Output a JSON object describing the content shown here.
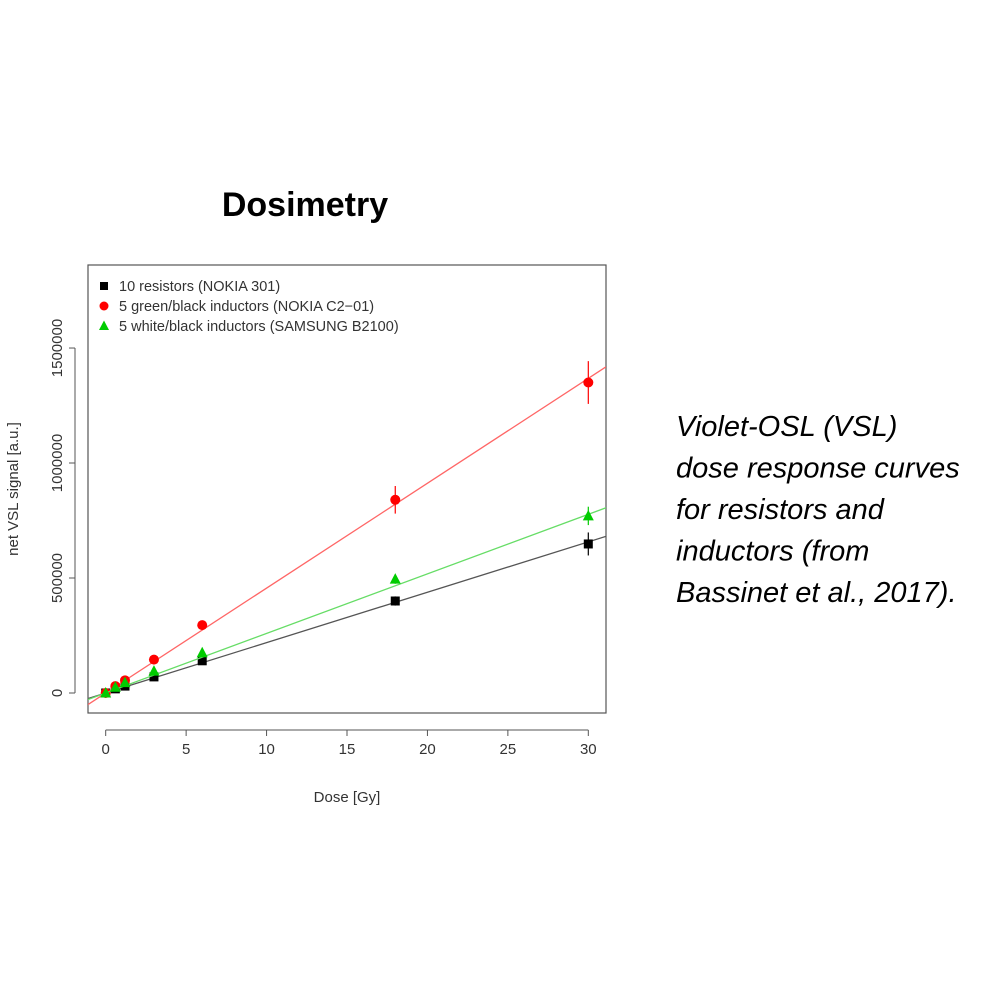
{
  "chart_data": {
    "type": "scatter",
    "title": "Dosimetry",
    "x_label": "Dose [Gy]",
    "y_label": "net VSL signal [a.u.]",
    "x": [
      0,
      0.6,
      1.2,
      3,
      6,
      18,
      30
    ],
    "series": [
      {
        "name": "10 resistors (NOKIA 301)",
        "color": "#000000",
        "marker": "square",
        "values": [
          0,
          18000,
          30000,
          70000,
          140000,
          400000,
          648000
        ],
        "errors": [
          null,
          null,
          null,
          null,
          null,
          20000,
          50000
        ],
        "fit": {
          "slope": 21900,
          "intercept": 0
        }
      },
      {
        "name": "5 green/black inductors (NOKIA C2−01)",
        "color": "#ff0000",
        "marker": "circle",
        "values": [
          0,
          30000,
          55000,
          145000,
          295000,
          840000,
          1350000
        ],
        "errors": [
          null,
          null,
          null,
          null,
          null,
          60000,
          93000
        ],
        "fit": {
          "slope": 45600,
          "intercept": 0
        }
      },
      {
        "name": "5 white/black inductors (SAMSUNG B2100)",
        "color": "#00cc00",
        "marker": "triangle",
        "values": [
          0,
          25000,
          45000,
          95000,
          175000,
          495000,
          770000
        ],
        "errors": [
          null,
          null,
          null,
          null,
          null,
          20000,
          40000
        ],
        "fit": {
          "slope": 25900,
          "intercept": 0
        }
      }
    ],
    "xlim": [
      -1.1,
      31.1
    ],
    "xticks": [
      0,
      5,
      10,
      15,
      20,
      25,
      30
    ],
    "ylim": [
      -87000,
      1861000
    ],
    "yticks": [
      0,
      500000,
      1000000,
      1500000
    ],
    "legend": "top-left",
    "annotations": [
      "Violet-OSL (VSL)",
      "dose response curves",
      "for resistors and",
      "inductors (from",
      "Bassinet et al., 2017)."
    ]
  }
}
